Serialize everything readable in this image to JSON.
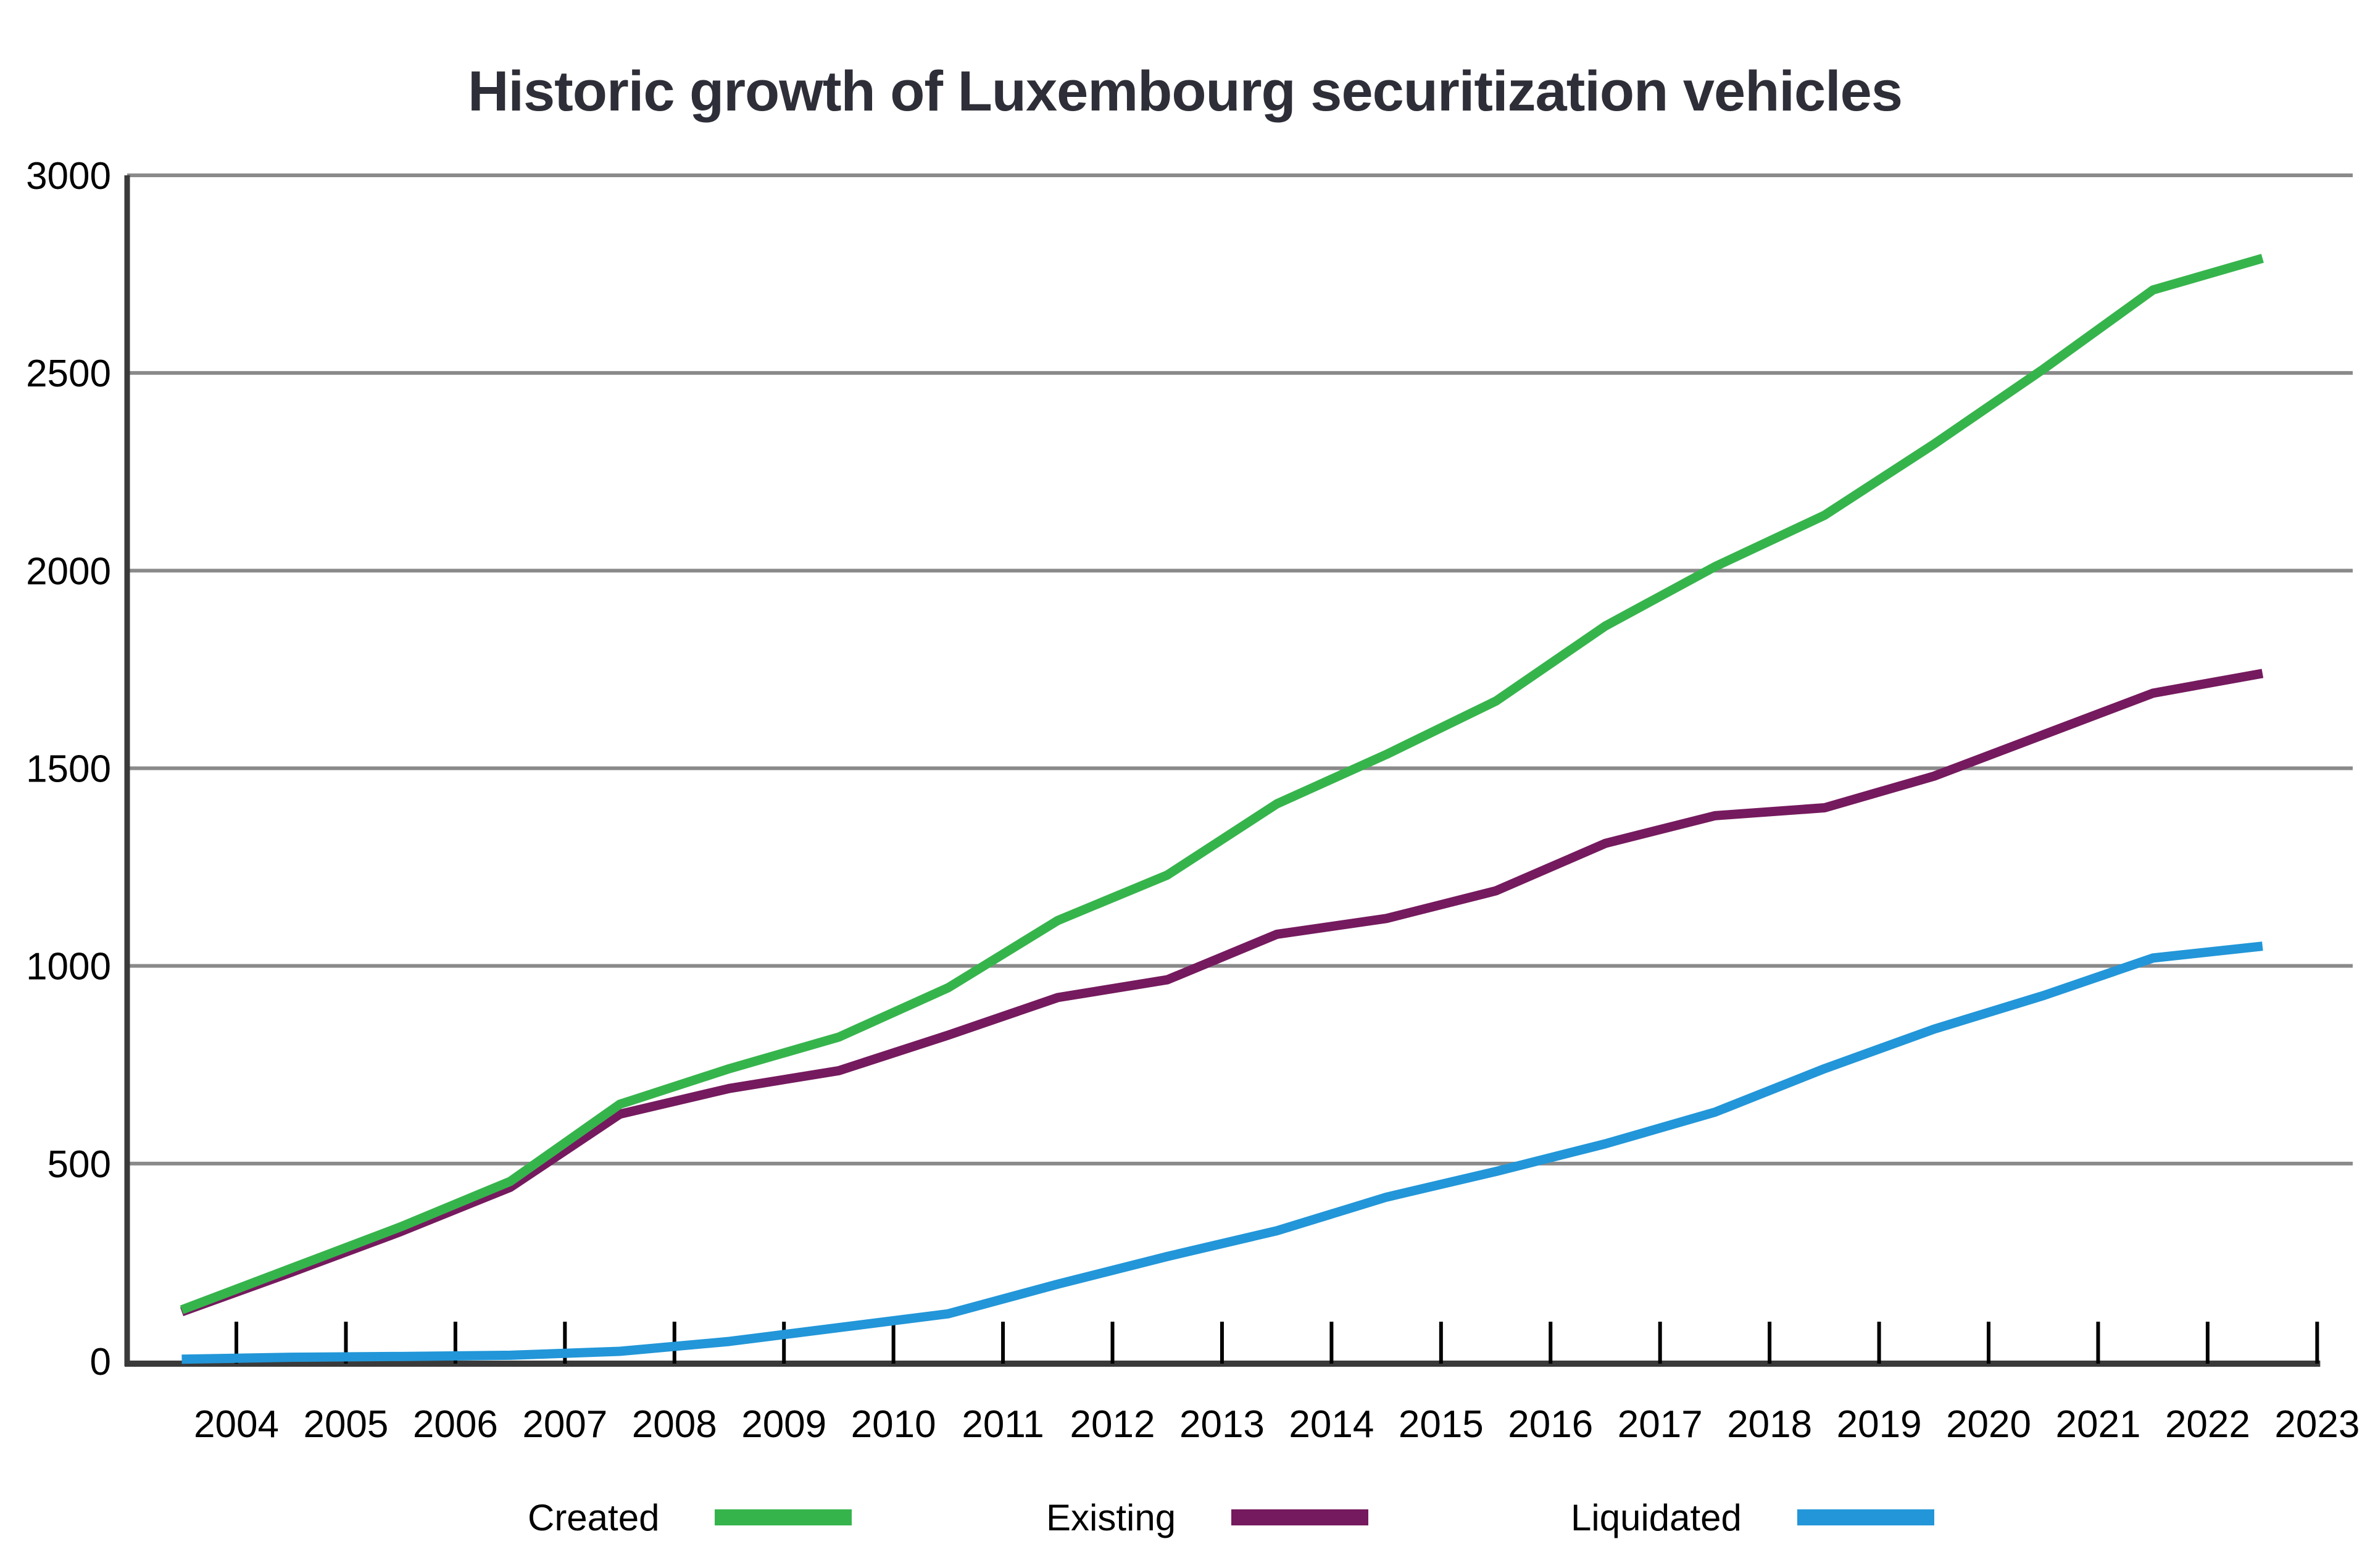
{
  "chart_data": {
    "type": "line",
    "title": "Historic growth of Luxembourg securitization vehicles",
    "xlabel": "",
    "ylabel": "",
    "x": [
      2004,
      2005,
      2006,
      2007,
      2008,
      2009,
      2010,
      2011,
      2012,
      2013,
      2014,
      2015,
      2016,
      2017,
      2018,
      2019,
      2020,
      2021,
      2022,
      2023
    ],
    "ylim": [
      0,
      3000
    ],
    "y_ticks": [
      0,
      500,
      1000,
      1500,
      2000,
      2500,
      3000
    ],
    "grid": "horizontal-only",
    "legend_position": "bottom",
    "series": [
      {
        "name": "Created",
        "color": "#36b44c",
        "values": [
          130,
          235,
          340,
          455,
          650,
          740,
          820,
          945,
          1115,
          1230,
          1410,
          1535,
          1670,
          1860,
          2010,
          2140,
          2320,
          2510,
          2710,
          2790
        ]
      },
      {
        "name": "Existing",
        "color": "#751a5e",
        "values": [
          125,
          225,
          328,
          440,
          625,
          690,
          735,
          825,
          920,
          965,
          1080,
          1120,
          1190,
          1310,
          1380,
          1400,
          1480,
          1585,
          1690,
          1740
        ]
      },
      {
        "name": "Liquidated",
        "color": "#2296d8",
        "values": [
          5,
          10,
          12,
          15,
          25,
          50,
          85,
          120,
          195,
          265,
          330,
          415,
          480,
          550,
          630,
          740,
          840,
          925,
          1020,
          1050
        ]
      }
    ],
    "colors": {
      "gridline": "#8a8a8a",
      "axis": "#3a3a3a",
      "tick": "#000000",
      "tick_label": "#000000",
      "title": "#2e2e38",
      "background": "#ffffff"
    }
  },
  "legend": {
    "created_label": "Created",
    "existing_label": "Existing",
    "liquidated_label": "Liquidated"
  }
}
